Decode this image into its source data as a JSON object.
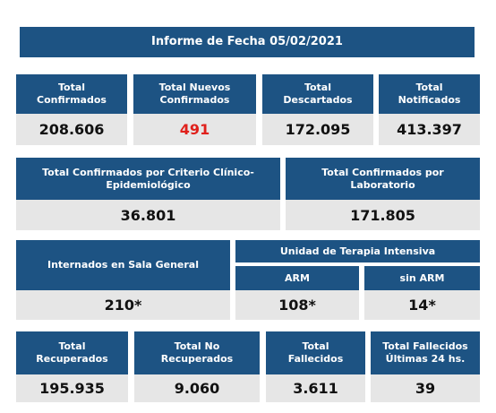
{
  "report": {
    "title": "Informe de Fecha 05/02/2021",
    "row1": [
      {
        "label": "Total\nConfirmados",
        "value": "208.606"
      },
      {
        "label": "Total Nuevos\nConfirmados",
        "value": "491"
      },
      {
        "label": "Total\nDescartados",
        "value": "172.095"
      },
      {
        "label": "Total\nNotificados",
        "value": "413.397"
      }
    ],
    "row2": [
      {
        "label": "Total Confirmados por Criterio Clínico-\nEpidemiológico",
        "value": "36.801"
      },
      {
        "label": "Total Confirmados por\nLaboratorio",
        "value": "171.805"
      }
    ],
    "row3": {
      "sala_label": "Internados en Sala General",
      "sala_value": "210*",
      "uti_label": "Unidad de Terapia Intensiva",
      "arm_label": "ARM",
      "arm_value": "108*",
      "sinarm_label": "sin ARM",
      "sinarm_value": "14*"
    },
    "row4": [
      {
        "label": "Total\nRecuperados",
        "value": "195.935"
      },
      {
        "label": "Total No\nRecuperados",
        "value": "9.060"
      },
      {
        "label": "Total\nFallecidos",
        "value": "3.611"
      },
      {
        "label": "Total Fallecidos\nÚltimas 24 hs.",
        "value": "39"
      }
    ],
    "colors": {
      "header_blue": "#1d5383",
      "value_gray": "#e6e6e6",
      "highlight_red": "#e0201b"
    }
  }
}
